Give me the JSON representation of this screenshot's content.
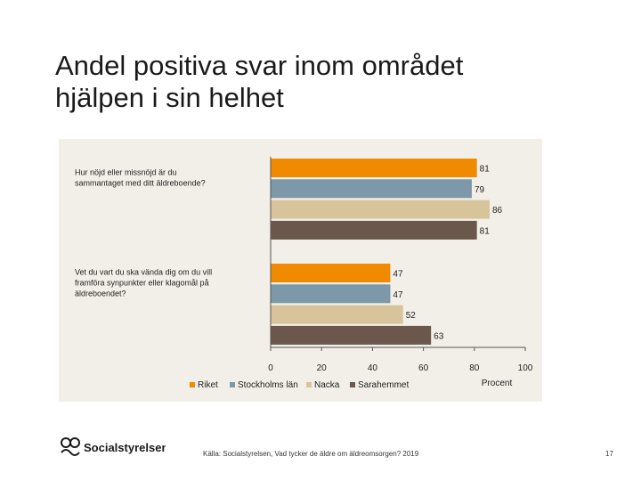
{
  "slide": {
    "title_line1": "Andel positiva svar inom området",
    "title_line2": "hjälpen i sin helhet",
    "source": "Källa: Socialstyrelsen, Vad tycker de äldre om äldreomsorgen? 2019",
    "page_number": "17",
    "logo_text": "Socialstyrelsen"
  },
  "chart_data": {
    "type": "bar",
    "orientation": "horizontal",
    "title": "",
    "xlabel": "Procent",
    "ylabel": "",
    "xlim": [
      0,
      100
    ],
    "xticks": [
      0,
      20,
      40,
      60,
      80,
      100
    ],
    "categories": [
      [
        "Hur nöjd eller missnöjd är du",
        "sammantaget med ditt äldreboende?"
      ],
      [
        "Vet du vart du ska vända dig om du vill",
        "framföra synpunkter eller klagomål på",
        "äldreboendet?"
      ]
    ],
    "series": [
      {
        "name": "Riket",
        "color": "#f08a00",
        "values": [
          81,
          47
        ]
      },
      {
        "name": "Stockholms län",
        "color": "#7d98a8",
        "values": [
          79,
          47
        ]
      },
      {
        "name": "Nacka",
        "color": "#d7c49b",
        "values": [
          86,
          52
        ]
      },
      {
        "name": "Sarahemmet",
        "color": "#6b574b",
        "values": [
          81,
          63
        ]
      }
    ],
    "legend_position": "bottom-left",
    "grid": false
  }
}
